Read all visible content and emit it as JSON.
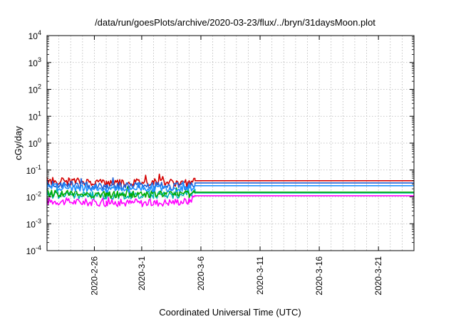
{
  "chart_data": {
    "type": "line",
    "title": "/data/run/goesPlots/archive/2020-03-23/flux/../bryn/31daysMoon.plot",
    "xlabel": "Coordinated Universal Time (UTC)",
    "ylabel": "cGy/day",
    "xlim": [
      "2020-02-22",
      "2020-03-24"
    ],
    "x_ticks": [
      "2020-2-26",
      "2020-3-1",
      "2020-3-6",
      "2020-3-11",
      "2020-3-16",
      "2020-3-21"
    ],
    "x_tick_dates": [
      "2020-02-26",
      "2020-03-01",
      "2020-03-06",
      "2020-03-11",
      "2020-03-16",
      "2020-03-21"
    ],
    "y_scale": "log",
    "ylim": [
      0.0001,
      10000
    ],
    "y_ticks": [
      {
        "base": "10",
        "exp": "-4",
        "value": 0.0001
      },
      {
        "base": "10",
        "exp": "-3",
        "value": 0.001
      },
      {
        "base": "10",
        "exp": "-2",
        "value": 0.01
      },
      {
        "base": "10",
        "exp": "-1",
        "value": 0.1
      },
      {
        "base": "10",
        "exp": "0",
        "value": 1
      },
      {
        "base": "10",
        "exp": "1",
        "value": 10
      },
      {
        "base": "10",
        "exp": "2",
        "value": 100
      },
      {
        "base": "10",
        "exp": "3",
        "value": 1000
      },
      {
        "base": "10",
        "exp": "4",
        "value": 10000
      }
    ],
    "grid": true,
    "legend": "none",
    "series": [
      {
        "color": "#ff00ff",
        "points": [
          [
            "2020-02-22",
            0.007
          ],
          [
            "2020-02-27",
            0.006
          ],
          [
            "2020-03-02",
            0.006
          ],
          [
            "2020-03-05",
            0.007
          ],
          [
            "2020-03-05T12:00",
            0.011
          ],
          [
            "2020-03-24",
            0.011
          ]
        ]
      },
      {
        "color": "#00b2b2",
        "points": [
          [
            "2020-02-22",
            0.012
          ],
          [
            "2020-02-27",
            0.011
          ],
          [
            "2020-03-02",
            0.012
          ],
          [
            "2020-03-05",
            0.012
          ],
          [
            "2020-03-05T12:00",
            0.014
          ],
          [
            "2020-03-24",
            0.014
          ]
        ]
      },
      {
        "color": "#00aa00",
        "points": [
          [
            "2020-02-22",
            0.014
          ],
          [
            "2020-02-27",
            0.012
          ],
          [
            "2020-03-02",
            0.013
          ],
          [
            "2020-03-05",
            0.013
          ],
          [
            "2020-03-05T12:00",
            0.015
          ],
          [
            "2020-03-24",
            0.015
          ]
        ]
      },
      {
        "color": "#d40000",
        "points": [
          [
            "2020-02-22",
            0.04
          ],
          [
            "2020-02-27",
            0.033
          ],
          [
            "2020-03-02",
            0.035
          ],
          [
            "2020-03-05",
            0.032
          ],
          [
            "2020-03-05T12:00",
            0.04
          ],
          [
            "2020-03-24",
            0.04
          ]
        ]
      },
      {
        "color": "#1f5fd6",
        "points": [
          [
            "2020-02-22",
            0.03
          ],
          [
            "2020-02-27",
            0.025
          ],
          [
            "2020-03-02",
            0.026
          ],
          [
            "2020-03-05",
            0.024
          ],
          [
            "2020-03-05T12:00",
            0.033
          ],
          [
            "2020-03-24",
            0.033
          ]
        ]
      },
      {
        "color": "#1e90ff",
        "points": [
          [
            "2020-02-22",
            0.024
          ],
          [
            "2020-02-27",
            0.02
          ],
          [
            "2020-03-02",
            0.021
          ],
          [
            "2020-03-05",
            0.02
          ],
          [
            "2020-03-05T12:00",
            0.026
          ],
          [
            "2020-03-24",
            0.026
          ]
        ]
      }
    ]
  }
}
